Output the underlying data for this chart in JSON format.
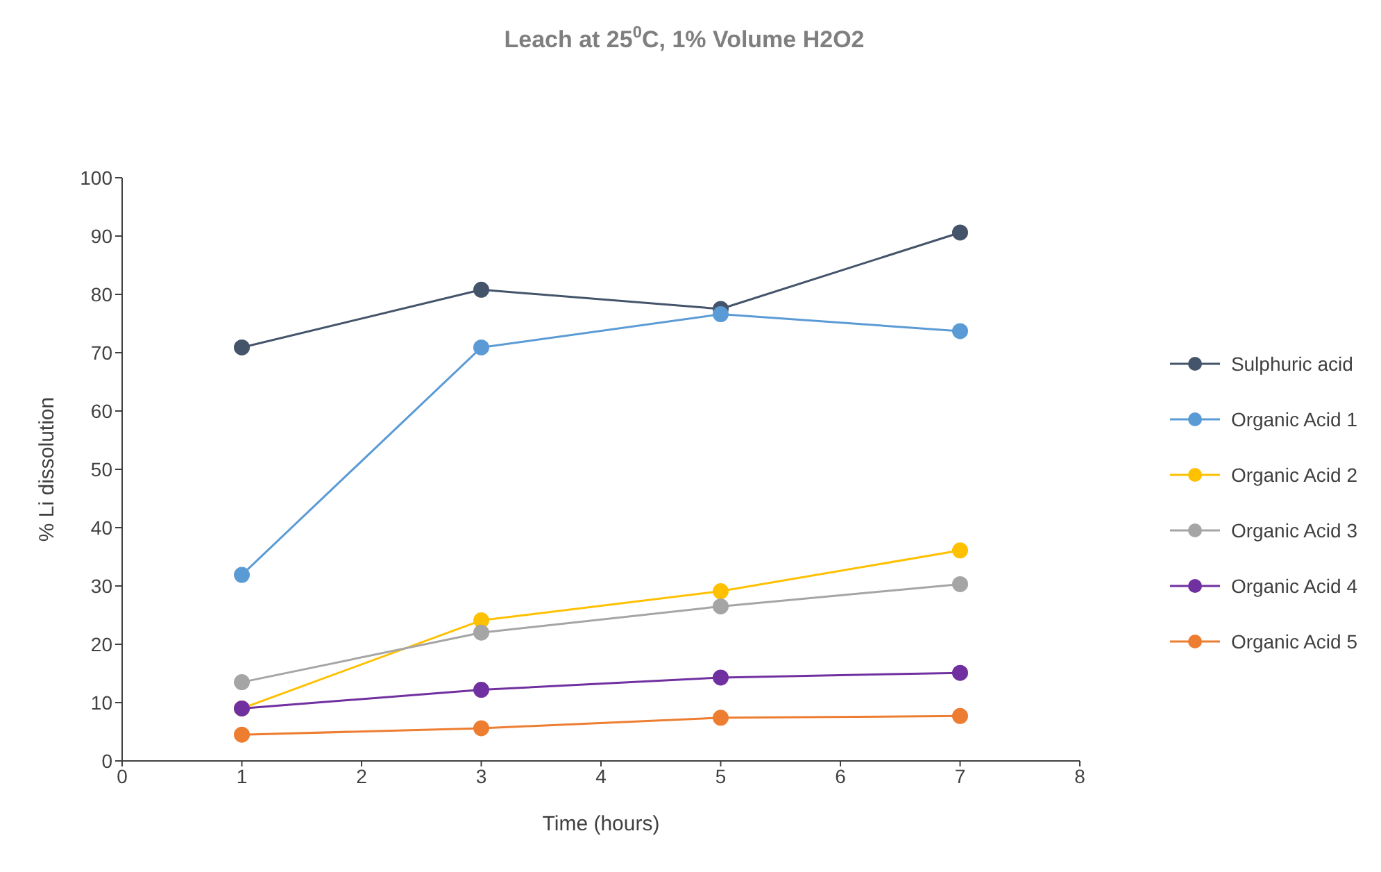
{
  "chart_data": {
    "type": "line",
    "title": "Leach at 25$^{0}$C, 1% Volume H2O2",
    "xlabel": "Time (hours)",
    "ylabel": "% Li dissolution",
    "x": [
      1,
      3,
      5,
      7
    ],
    "series": [
      {
        "name": "Sulphuric acid",
        "color": "#44546a",
        "values": [
          70.9,
          80.8,
          77.5,
          90.6
        ]
      },
      {
        "name": "Organic Acid 1",
        "color": "#5b9bd5",
        "values": [
          31.9,
          70.9,
          76.6,
          73.7
        ]
      },
      {
        "name": "Organic Acid 2",
        "color": "#ffc000",
        "values": [
          9,
          24.1,
          29.1,
          36.1
        ]
      },
      {
        "name": "Organic Acid 3",
        "color": "#a5a5a5",
        "values": [
          13.5,
          22,
          26.5,
          30.3
        ]
      },
      {
        "name": "Organic Acid 4",
        "color": "#7030a0",
        "values": [
          9,
          12.2,
          14.3,
          15.1
        ]
      },
      {
        "name": "Organic Acid 5",
        "color": "#ed7d31",
        "values": [
          4.5,
          5.6,
          7.4,
          7.7
        ]
      }
    ],
    "xlim": [
      0,
      8
    ],
    "xticks": [
      0,
      1,
      2,
      3,
      4,
      5,
      6,
      7,
      8
    ],
    "ylim": [
      0,
      100
    ],
    "yticks": [
      0,
      10,
      20,
      30,
      40,
      50,
      60,
      70,
      80,
      90,
      100
    ],
    "grid": false,
    "legend": "right",
    "marker": "circle",
    "line_style": "solid"
  }
}
